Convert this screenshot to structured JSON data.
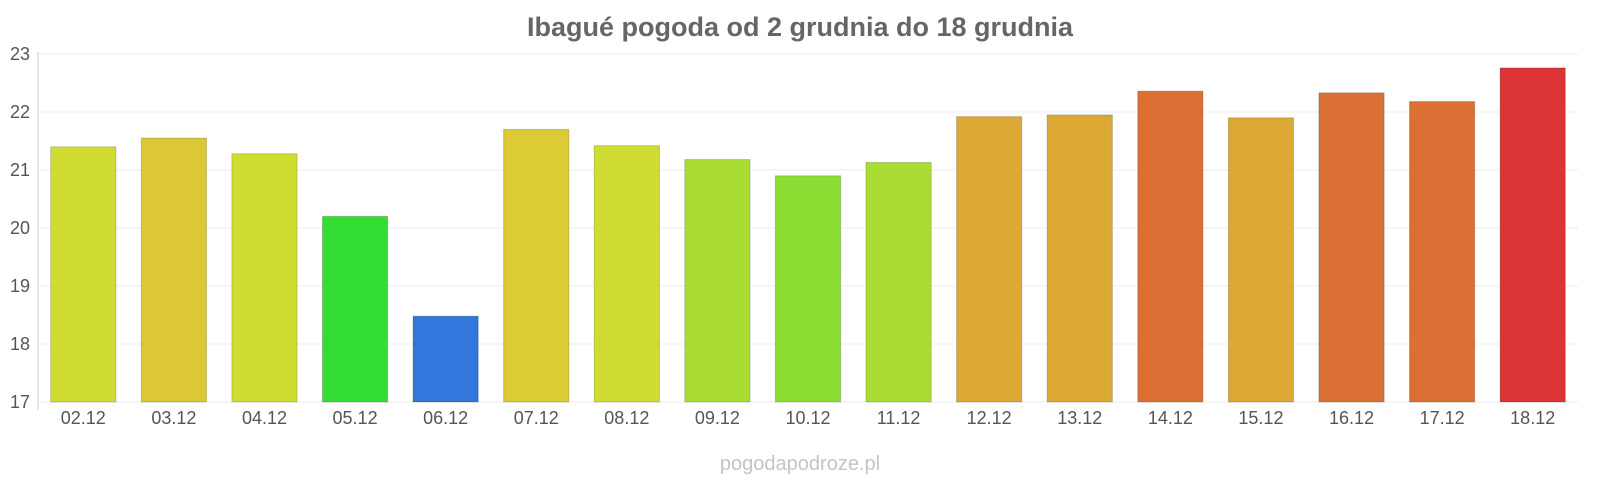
{
  "chart_data": {
    "type": "bar",
    "title": "Ibagué pogoda od 2 grudnia do 18 grudnia",
    "xlabel": "",
    "ylabel": "",
    "ylim": [
      17,
      23
    ],
    "yticks": [
      "17",
      "18",
      "19",
      "20",
      "21",
      "22",
      "23"
    ],
    "grid": true,
    "categories": [
      "02.12",
      "03.12",
      "04.12",
      "05.12",
      "06.12",
      "07.12",
      "08.12",
      "09.12",
      "10.12",
      "11.12",
      "12.12",
      "13.12",
      "14.12",
      "15.12",
      "16.12",
      "17.12",
      "18.12"
    ],
    "values": [
      21.4,
      21.55,
      21.28,
      20.2,
      18.48,
      21.7,
      21.42,
      21.18,
      20.9,
      21.13,
      21.92,
      21.95,
      22.36,
      21.9,
      22.33,
      22.18,
      22.76
    ],
    "colors": [
      "#cfdd33",
      "#dcc734",
      "#cfdd33",
      "#33dd33",
      "#3377dd",
      "#dccb34",
      "#cfdd33",
      "#aadd33",
      "#8bdd33",
      "#aadd33",
      "#dcaa34",
      "#dcaa34",
      "#dc6f34",
      "#dcaa34",
      "#dc6f34",
      "#dc6f34",
      "#dc3434"
    ]
  },
  "watermark": "pogodapodroze.pl"
}
